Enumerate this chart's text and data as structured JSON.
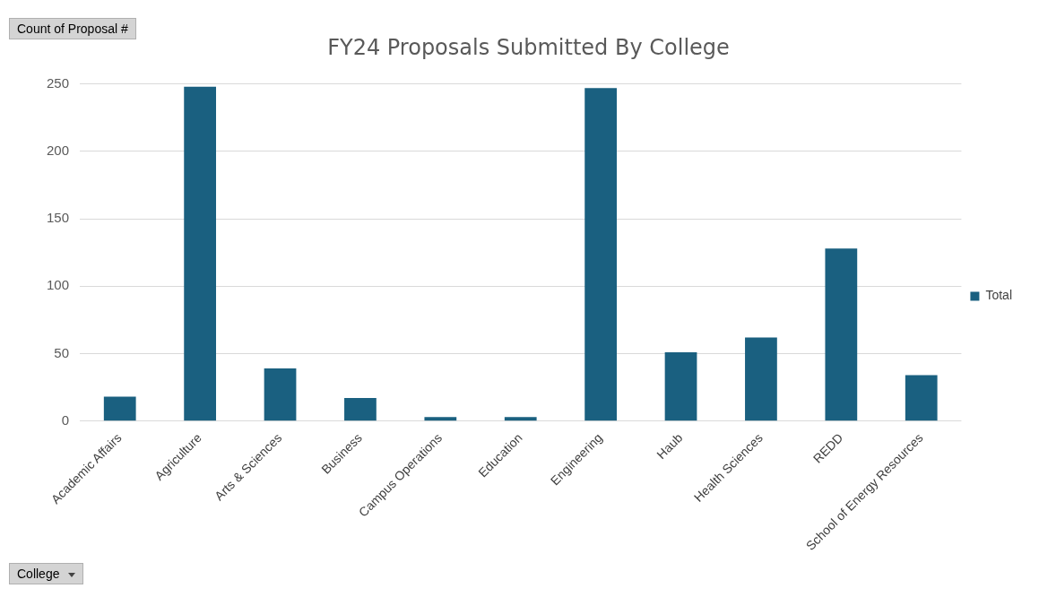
{
  "chart_data": {
    "type": "bar",
    "title": "FY24 Proposals Submitted By College",
    "ylabel": "Count of Proposal #",
    "xlabel": "College",
    "categories": [
      "Academic Affairs",
      "Agriculture",
      "Arts & Sciences",
      "Business",
      "Campus Operations",
      "Education",
      "Engineering",
      "Haub",
      "Health Sciences",
      "REDD",
      "School of Energy Resources"
    ],
    "series": [
      {
        "name": "Total",
        "color": "#1a6080",
        "values": [
          18,
          248,
          39,
          17,
          3,
          3,
          247,
          51,
          62,
          128,
          34
        ]
      }
    ],
    "ylim": [
      0,
      250
    ],
    "yticks": [
      0,
      50,
      100,
      150,
      200,
      250
    ],
    "grid": "y",
    "legend": "right"
  }
}
